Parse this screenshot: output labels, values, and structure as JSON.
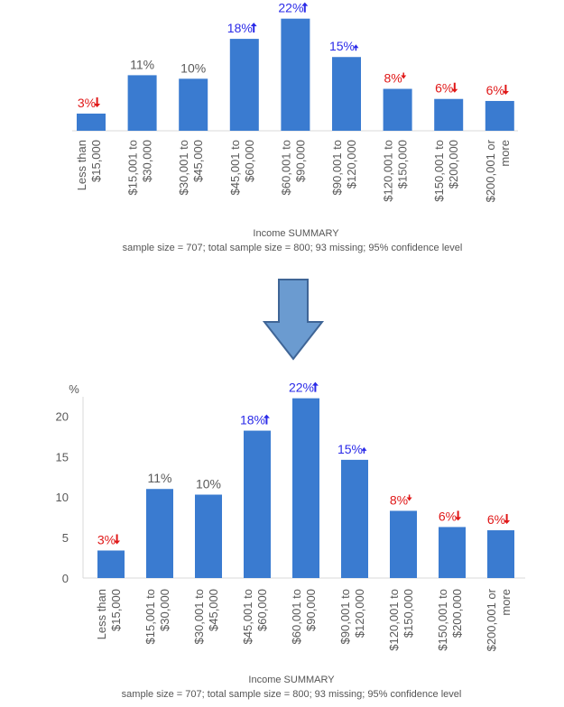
{
  "colors": {
    "bar": "#3a7bd0",
    "up": "#2a2ae8",
    "down": "#e01818",
    "neutral": "#595959",
    "arrow_fill": "#6b9bd0",
    "arrow_stroke": "#3f6596"
  },
  "arrow_icon": "down-arrow-icon",
  "chart_data": [
    {
      "type": "bar",
      "categories": [
        [
          "Less than",
          "$15,000"
        ],
        [
          "$15,001 to",
          "$30,000"
        ],
        [
          "$30,001 to",
          "$45,000"
        ],
        [
          "$45,001 to",
          "$60,000"
        ],
        [
          "$60,001 to",
          "$90,000"
        ],
        [
          "$90,001 to",
          "$120,000"
        ],
        [
          "$120,001 to",
          "$150,000"
        ],
        [
          "$150,001 to",
          "$200,000"
        ],
        [
          "$200,001 or",
          "more"
        ]
      ],
      "values": [
        3.4,
        11.0,
        10.3,
        18.2,
        22.2,
        14.6,
        8.3,
        6.3,
        5.9
      ],
      "data_labels": [
        "3%",
        "11%",
        "10%",
        "18%",
        "22%",
        "15%",
        "8%",
        "6%",
        "6%"
      ],
      "significance": [
        "down",
        "none",
        "none",
        "up",
        "up",
        "up-small",
        "down-small",
        "down",
        "down"
      ],
      "xlabel": "Income SUMMARY",
      "subtitle": "sample size = 707; total sample size = 800; 93 missing; 95% confidence level",
      "ylim": [
        0,
        22.5
      ],
      "y_axis_shown": false,
      "grid": false
    },
    {
      "type": "bar",
      "categories": [
        [
          "Less than",
          "$15,000"
        ],
        [
          "$15,001 to",
          "$30,000"
        ],
        [
          "$30,001 to",
          "$45,000"
        ],
        [
          "$45,001 to",
          "$60,000"
        ],
        [
          "$60,001 to",
          "$90,000"
        ],
        [
          "$90,001 to",
          "$120,000"
        ],
        [
          "$120,001 to",
          "$150,000"
        ],
        [
          "$150,001 to",
          "$200,000"
        ],
        [
          "$200,001 or",
          "more"
        ]
      ],
      "values": [
        3.4,
        11.0,
        10.3,
        18.2,
        22.2,
        14.6,
        8.3,
        6.3,
        5.9
      ],
      "data_labels": [
        "3%",
        "11%",
        "10%",
        "18%",
        "22%",
        "15%",
        "8%",
        "6%",
        "6%"
      ],
      "significance": [
        "down",
        "none",
        "none",
        "up",
        "up",
        "up-small",
        "down-small",
        "down",
        "down"
      ],
      "xlabel": "Income SUMMARY",
      "subtitle": "sample size = 707; total sample size = 800; 93 missing; 95% confidence level",
      "y_unit": "%",
      "y_ticks": [
        0,
        5,
        10,
        15,
        20
      ],
      "ylim": [
        0,
        22.2
      ],
      "y_axis_shown": true,
      "grid": false
    }
  ]
}
